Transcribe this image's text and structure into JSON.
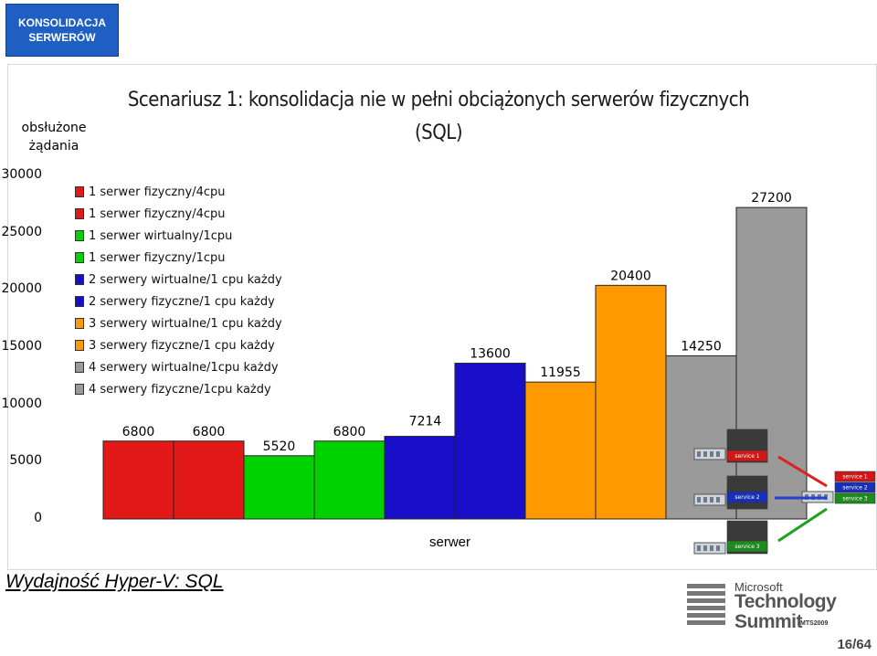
{
  "header": {
    "badge_line1": "KONSOLIDACJA",
    "badge_line2": "SERWERÓW"
  },
  "footer": {
    "title": "Wydajność Hyper-V: SQL",
    "page": "16/64"
  },
  "logo": {
    "line1": "Microsoft",
    "line2": "Technology",
    "line3": "Summit",
    "line4": "MTS2009"
  },
  "colors": {
    "red": "#e31818",
    "green": "#00d200",
    "blue": "#1a0fc8",
    "orange": "#ff9900",
    "gray": "#9a9a9a",
    "badge": "#1f5fc4"
  },
  "chart_data": {
    "type": "bar",
    "title_line1": "Scenariusz 1: konsolidacja nie w pełni obciążonych serwerów fizycznych",
    "title_line2": "(SQL)",
    "ylabel_line1": "obsłużone",
    "ylabel_line2": "żądania",
    "xlabel": "serwer",
    "ylim": [
      0,
      30000
    ],
    "yticks": [
      "0",
      "5000",
      "10000",
      "15000",
      "20000",
      "25000",
      "30000"
    ],
    "bars": [
      {
        "label": "1 serwer fizyczny/4cpu",
        "value": 6800,
        "value_label": "6800",
        "color": "#e31818"
      },
      {
        "label": "1 serwer fizyczny/4cpu",
        "value": 6800,
        "value_label": "6800",
        "color": "#e31818"
      },
      {
        "label": "1 serwer wirtualny/1cpu",
        "value": 5520,
        "value_label": "5520",
        "color": "#00d200"
      },
      {
        "label": "1 serwer fizyczny/1cpu",
        "value": 6800,
        "value_label": "6800",
        "color": "#00d200"
      },
      {
        "label": "2 serwery wirtualne/1 cpu każdy",
        "value": 7214,
        "value_label": "7214",
        "color": "#1a0fc8"
      },
      {
        "label": "2 serwery fizyczne/1 cpu każdy",
        "value": 13600,
        "value_label": "13600",
        "color": "#1a0fc8"
      },
      {
        "label": "3 serwery wirtualne/1 cpu każdy",
        "value": 11955,
        "value_label": "11955",
        "color": "#ff9900"
      },
      {
        "label": "3 serwery fizyczne/1 cpu każdy",
        "value": 20400,
        "value_label": "20400",
        "color": "#ff9900"
      },
      {
        "label": "4 serwery wirtualne/1cpu każdy",
        "value": 14250,
        "value_label": "14250",
        "color": "#9a9a9a"
      },
      {
        "label": "4 serwery fizyczne/1cpu każdy",
        "value": 27200,
        "value_label": "27200",
        "color": "#9a9a9a"
      }
    ],
    "legend": [
      {
        "label": "1 serwer fizyczny/4cpu",
        "color": "#e31818"
      },
      {
        "label": "1 serwer fizyczny/4cpu",
        "color": "#e31818"
      },
      {
        "label": "1 serwer wirtualny/1cpu",
        "color": "#00d200"
      },
      {
        "label": "1 serwer fizyczny/1cpu",
        "color": "#00d200"
      },
      {
        "label": "2 serwery wirtualne/1 cpu każdy",
        "color": "#1a0fc8"
      },
      {
        "label": "2 serwery fizyczne/1 cpu każdy",
        "color": "#1a0fc8"
      },
      {
        "label": "3 serwery wirtualne/1 cpu każdy",
        "color": "#ff9900"
      },
      {
        "label": "3 serwery fizyczne/1 cpu każdy",
        "color": "#ff9900"
      },
      {
        "label": "4 serwery wirtualne/1cpu każdy",
        "color": "#9a9a9a"
      },
      {
        "label": "4 serwery fizyczne/1cpu każdy",
        "color": "#9a9a9a"
      }
    ],
    "diagram_services": [
      "service 1",
      "service 2",
      "service 3"
    ]
  }
}
